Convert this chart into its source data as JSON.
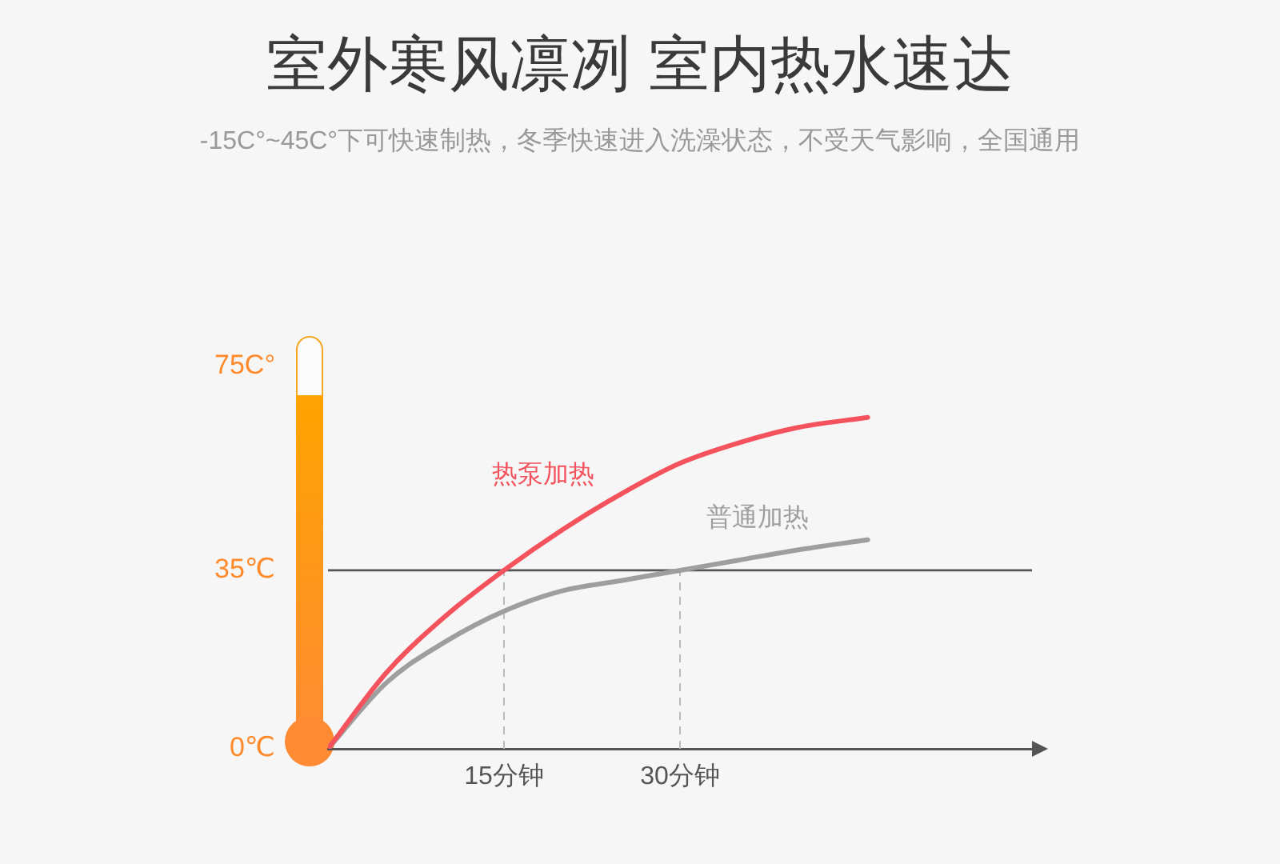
{
  "chart_data": {
    "type": "line",
    "title": "室外寒风凛冽 室内热水速达",
    "subtitle": "-15C°~45C°下可快速制热，冬季快速进入洗澡状态，不受天气影响，全国通用",
    "x": [
      0,
      5,
      10,
      15,
      20,
      25,
      30,
      35,
      40,
      46
    ],
    "series": [
      {
        "name": "热泵加热",
        "color": "#f4525c",
        "values": [
          0,
          15,
          26,
          35,
          43,
          50,
          56,
          60,
          63,
          65
        ]
      },
      {
        "name": "普通加热",
        "color": "#9e9e9e",
        "values": [
          0,
          13,
          21,
          27,
          31,
          33,
          35,
          37,
          39,
          41
        ]
      }
    ],
    "xlim": [
      0,
      60
    ],
    "xticks": [
      {
        "value": 15,
        "label": "15分钟"
      },
      {
        "value": 30,
        "label": "30分钟"
      }
    ],
    "ylim": [
      0,
      75
    ],
    "yticks": [
      {
        "value": 0,
        "label": "0℃"
      },
      {
        "value": 35,
        "label": "35℃"
      },
      {
        "value": 75,
        "label": "75C°"
      }
    ],
    "ref_lines": [
      {
        "axis": "y",
        "value": 35,
        "color": "#555555",
        "line_style": "solid"
      },
      {
        "axis": "x",
        "value": 15,
        "color": "#bbbbbb",
        "line_style": "dashed"
      },
      {
        "axis": "x",
        "value": 30,
        "color": "#bbbbbb",
        "line_style": "dashed"
      }
    ]
  }
}
